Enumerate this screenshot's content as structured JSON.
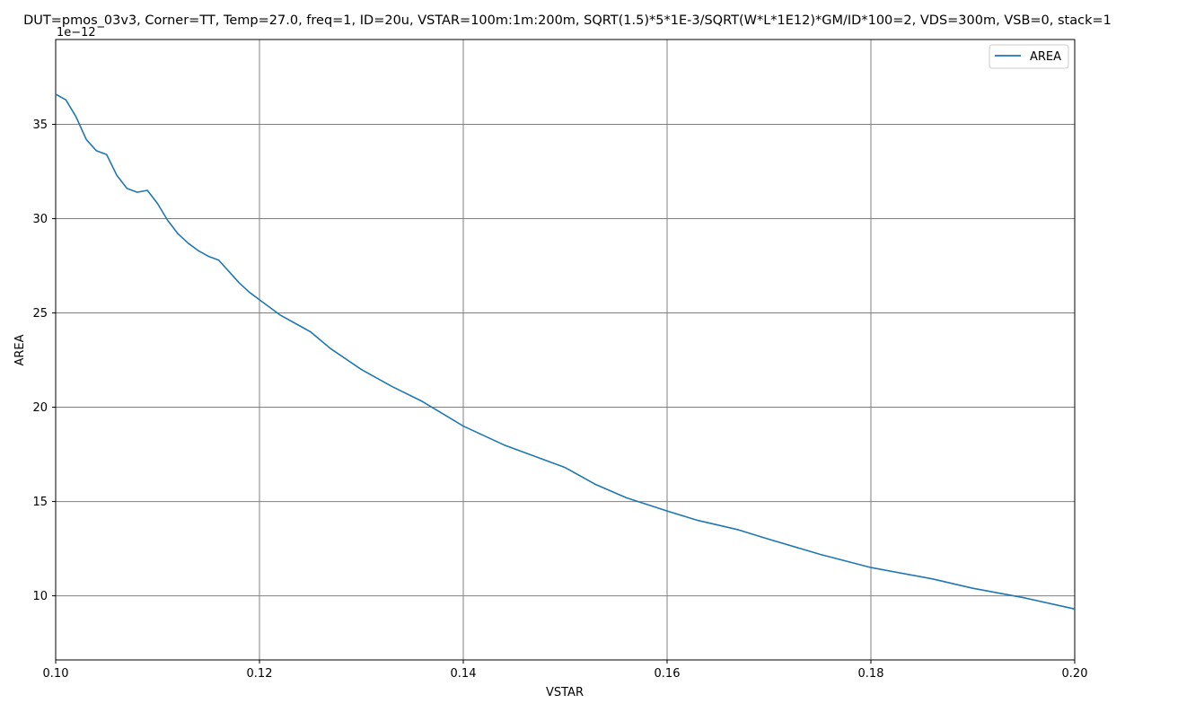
{
  "chart_data": {
    "type": "line",
    "title": "DUT=pmos_03v3, Corner=TT, Temp=27.0, freq=1, ID=20u, VSTAR=100m:1m:200m, SQRT(1.5)*5*1E-3/SQRT(W*L*1E12)*GM/ID*100=2, VDS=300m, VSB=0, stack=1",
    "xlabel": "VSTAR",
    "ylabel": "AREA",
    "y_offset_text": "1e−12",
    "xlim": [
      0.1,
      0.2
    ],
    "ylim": [
      6.6,
      39.5
    ],
    "y_scale_factor": 1e-12,
    "xticks": [
      0.1,
      0.12,
      0.14,
      0.16,
      0.18,
      0.2
    ],
    "xtick_labels": [
      "0.10",
      "0.12",
      "0.14",
      "0.16",
      "0.18",
      "0.20"
    ],
    "yticks": [
      10,
      15,
      20,
      25,
      30,
      35
    ],
    "ytick_labels": [
      "10",
      "15",
      "20",
      "25",
      "30",
      "35"
    ],
    "grid": true,
    "legend_position": "top-right",
    "colors": {
      "series": "#1f77b4",
      "grid": "#808080",
      "axes": "#000000"
    },
    "series": [
      {
        "name": "AREA",
        "x": [
          0.1,
          0.101,
          0.102,
          0.103,
          0.104,
          0.105,
          0.106,
          0.107,
          0.108,
          0.109,
          0.11,
          0.111,
          0.112,
          0.113,
          0.114,
          0.115,
          0.116,
          0.117,
          0.118,
          0.119,
          0.12,
          0.122,
          0.124,
          0.125,
          0.127,
          0.13,
          0.133,
          0.136,
          0.14,
          0.144,
          0.148,
          0.15,
          0.153,
          0.156,
          0.16,
          0.163,
          0.167,
          0.17,
          0.175,
          0.18,
          0.186,
          0.19,
          0.195,
          0.2
        ],
        "values": [
          36.6,
          36.3,
          35.4,
          34.2,
          33.6,
          33.4,
          32.3,
          31.6,
          31.4,
          31.5,
          30.8,
          29.9,
          29.2,
          28.7,
          28.3,
          28.0,
          27.8,
          27.2,
          26.6,
          26.1,
          25.7,
          24.9,
          24.3,
          24.0,
          23.1,
          22.0,
          21.1,
          20.3,
          19.0,
          18.0,
          17.2,
          16.8,
          15.9,
          15.2,
          14.5,
          14.0,
          13.5,
          13.0,
          12.2,
          11.5,
          10.9,
          10.4,
          9.9,
          9.3
        ]
      }
    ]
  }
}
